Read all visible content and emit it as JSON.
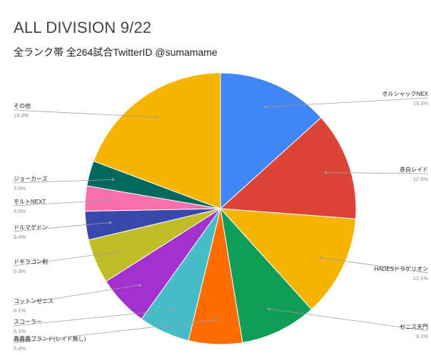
{
  "chart_data": {
    "type": "pie",
    "title": "ALL DIVISION 9/22",
    "subtitle": "全ランク帯 全264試合TwitterID @sumamame",
    "slices": [
      {
        "label": "ボルシャックNEX",
        "value": 13.3,
        "pct_label": "13.3%",
        "color": "#4285f4"
      },
      {
        "label": "赤白レイド",
        "value": 12.9,
        "pct_label": "12.9%",
        "color": "#db4437"
      },
      {
        "label": "HADESドラゲリオン",
        "value": 12.1,
        "pct_label": "12.1%",
        "color": "#f4b400"
      },
      {
        "label": "ゼニス天門",
        "value": 9.1,
        "pct_label": "9.1%",
        "color": "#0f9d58"
      },
      {
        "label": "轟轟轟ブランド(レイド無し)",
        "value": 6.4,
        "pct_label": "6.4%",
        "color": "#ff6d00"
      },
      {
        "label": "スコーラー",
        "value": 6.1,
        "pct_label": "6.1%",
        "color": "#46bdc6"
      },
      {
        "label": "コットンゼニス",
        "value": 6.1,
        "pct_label": "6.1%",
        "color": "#a331d0"
      },
      {
        "label": "ドギラゴン剣",
        "value": 5.3,
        "pct_label": "5.3%",
        "color": "#c0bd26"
      },
      {
        "label": "ドルマゲドン",
        "value": 3.4,
        "pct_label": "3.4%",
        "color": "#3949ab"
      },
      {
        "label": "モルトNEXT",
        "value": 3.0,
        "pct_label": "3.0%",
        "color": "#f86fab"
      },
      {
        "label": "ジョーカーズ",
        "value": 3.0,
        "pct_label": "3.0%",
        "color": "#00695c"
      },
      {
        "label": "その他",
        "value": 19.3,
        "pct_label": "19.3%",
        "color": "#f4b400"
      }
    ],
    "legend": "none"
  }
}
